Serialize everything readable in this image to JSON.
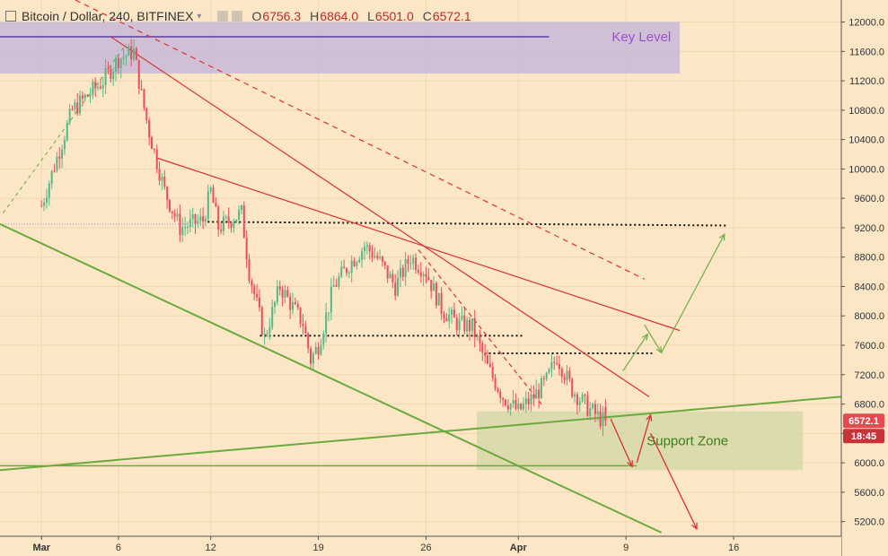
{
  "header": {
    "symbol": "Bitcoin / Dollar, 240, BITFINEX",
    "open_label": "O",
    "open": "6756.3",
    "high_label": "H",
    "high": "6864.0",
    "low_label": "L",
    "low": "6501.0",
    "close_label": "C",
    "close": "6572.1",
    "icons": [
      "square-icon",
      "chevron-down-icon",
      "eye-icon",
      "gear-icon"
    ]
  },
  "price_scale": {
    "last_price": "6572.1",
    "countdown": "18:45",
    "last_price_color": "#e8484e"
  },
  "colors": {
    "background": "#fbe6c6",
    "up_candle": "#53b987",
    "down_candle": "#eb4d5c",
    "resistance_line": "#d83232",
    "support_line": "#6aaa3c",
    "key_level_zone": "#c8b8d8",
    "key_level_line": "#5a3fa0",
    "support_zone": "#d6d8a8"
  },
  "chart_data": {
    "type": "candlestick",
    "title": "Bitcoin / Dollar, 240, BITFINEX",
    "interval": "4h",
    "y_ticks": [
      12000,
      11600,
      11200,
      10800,
      10400,
      10000,
      9600,
      9200,
      8800,
      8400,
      8000,
      7600,
      7200,
      6800,
      6400,
      6000,
      5600,
      5200
    ],
    "x_ticks": [
      "Mar",
      "6",
      "12",
      "19",
      "26",
      "Apr",
      "9",
      "16"
    ],
    "x_tick_days": [
      0,
      5,
      11,
      18,
      25,
      31,
      38,
      45
    ],
    "ylim": [
      5000,
      12300
    ],
    "xlim_days": [
      -2.7,
      52
    ],
    "last_candle_day": 36.5,
    "price_path_days": [
      0,
      2,
      4,
      5,
      6,
      6.5,
      7,
      8,
      9,
      10.5,
      11,
      11.5,
      13,
      13.5,
      14.5,
      15.5,
      17,
      17.5,
      18,
      19,
      20,
      21,
      21.8,
      23,
      24,
      25,
      26,
      27,
      28,
      29,
      30,
      31,
      32,
      32.8,
      33.5,
      34.5,
      35.5,
      36.5
    ],
    "price_path_close": [
      9500,
      10800,
      11200,
      11500,
      11600,
      11000,
      10500,
      9700,
      9200,
      9300,
      9700,
      9200,
      9400,
      8600,
      7700,
      8400,
      7900,
      7400,
      7600,
      8400,
      8700,
      8950,
      8800,
      8400,
      8800,
      8600,
      8100,
      7900,
      7850,
      7300,
      6900,
      6700,
      6900,
      7100,
      7450,
      7000,
      6750,
      6572
    ],
    "annotations": {
      "key_level": {
        "label": "Key Level",
        "price": 11800,
        "zone": [
          11300,
          12000
        ]
      },
      "support_zone": {
        "label": "Support Zone",
        "zone": [
          5900,
          6700
        ]
      }
    }
  }
}
